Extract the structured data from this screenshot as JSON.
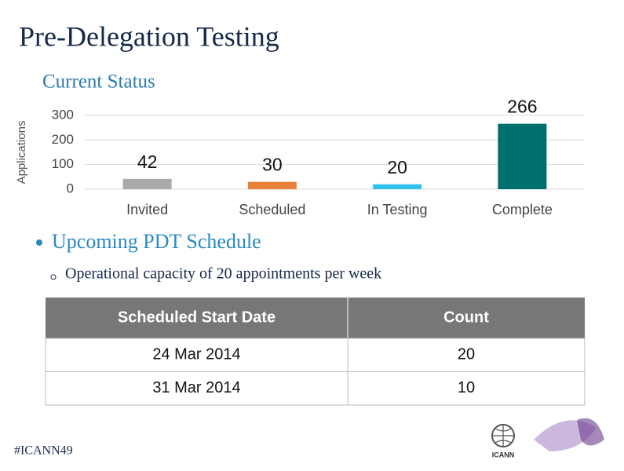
{
  "title": "Pre-Delegation Testing",
  "subtitle": "Current Status",
  "chart_data": {
    "type": "bar",
    "y_label": "Applications",
    "categories": [
      "Invited",
      "Scheduled",
      "In Testing",
      "Complete"
    ],
    "values": [
      42,
      30,
      20,
      266
    ],
    "colors": [
      "#aaaaaa",
      "#e8803a",
      "#2fc0ee",
      "#00706e"
    ],
    "ylim": [
      0,
      300
    ],
    "yticks": [
      0,
      100,
      200,
      300
    ],
    "grid": true
  },
  "bullets": [
    {
      "text": "Upcoming PDT Schedule",
      "children": [
        "Operational capacity of 20 appointments per week"
      ]
    }
  ],
  "table": {
    "header": [
      "Scheduled Start Date",
      "Count"
    ],
    "rows": [
      [
        "24 Mar 2014",
        "20"
      ],
      [
        "31 Mar 2014",
        "10"
      ]
    ]
  },
  "footer": {
    "hashtag": "#ICANN49",
    "logo": "ICANN"
  }
}
